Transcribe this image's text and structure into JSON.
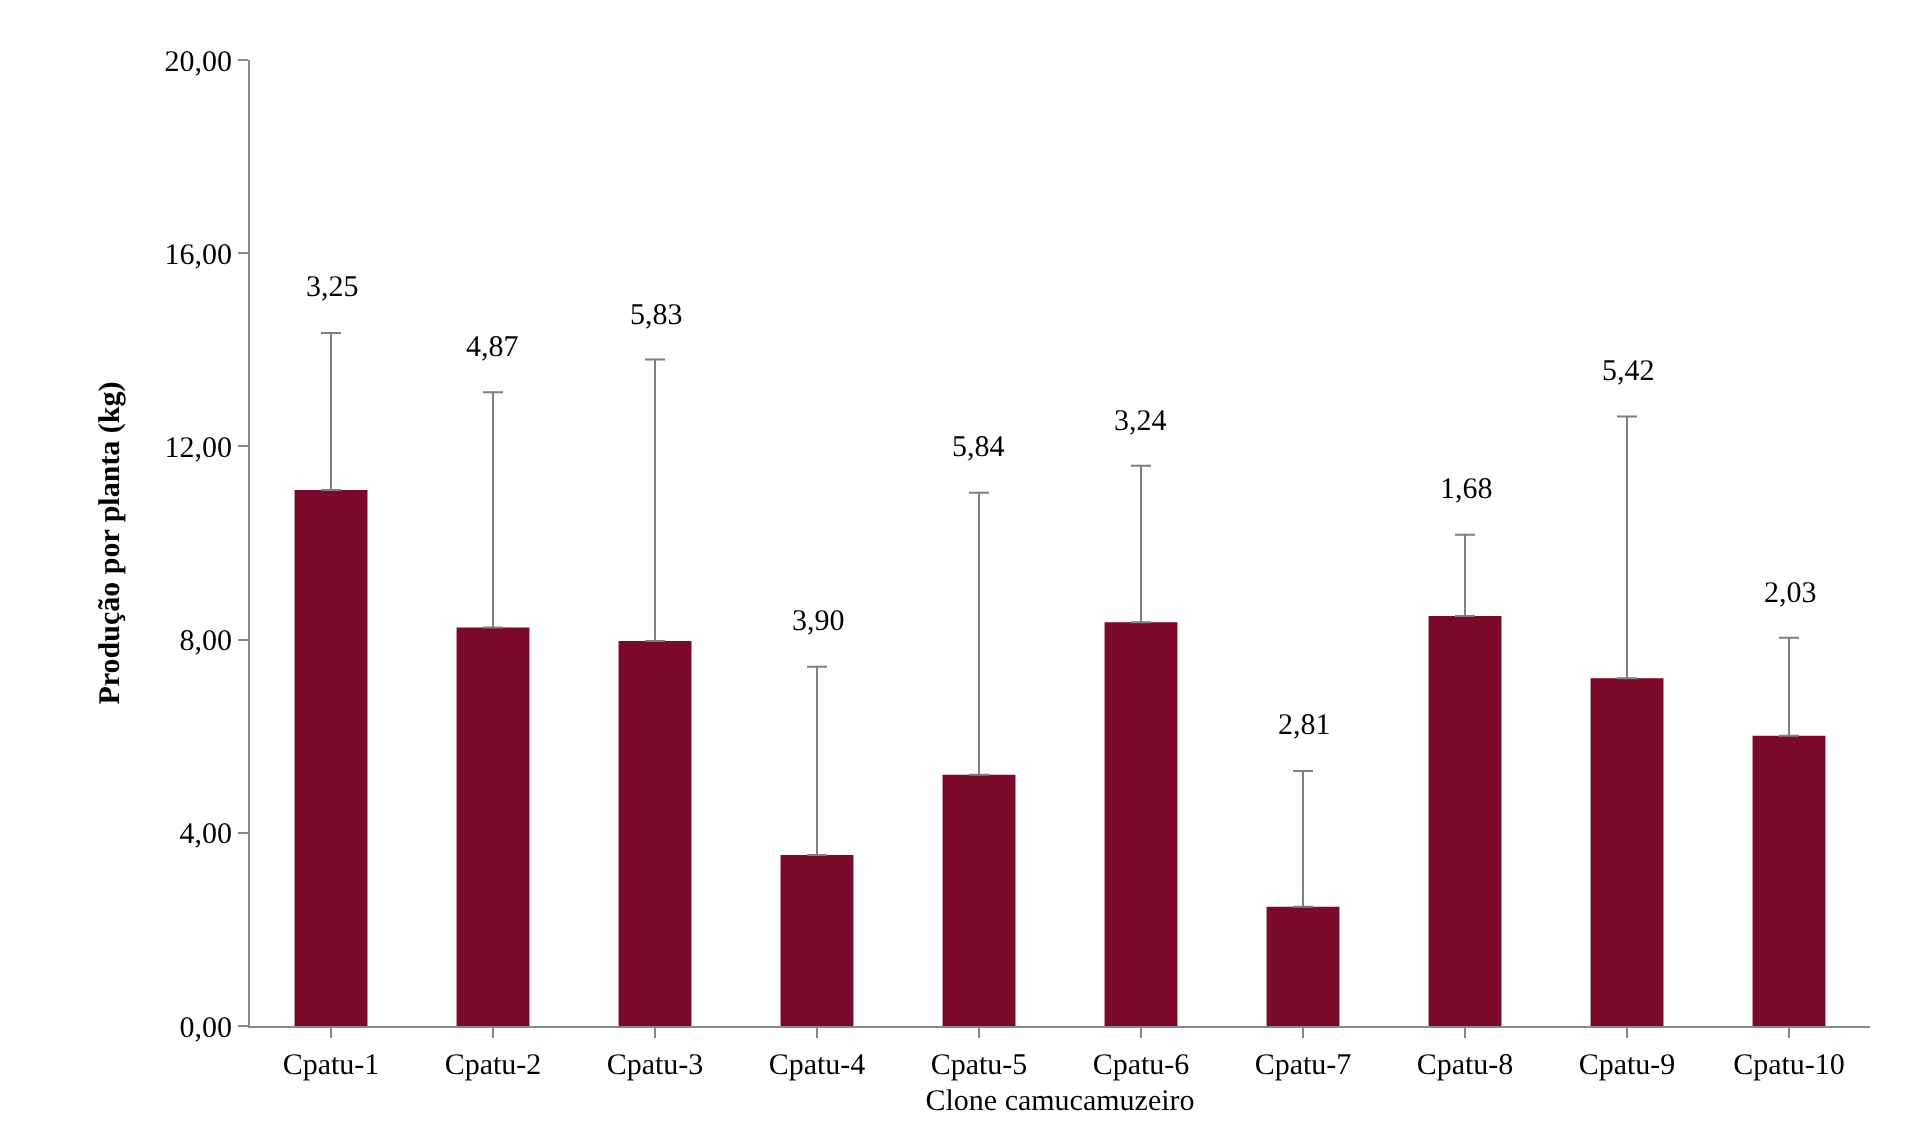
{
  "chart_data": {
    "type": "bar",
    "xlabel": "Clone camucamuzeiro",
    "ylabel": "Produção por planta (kg)",
    "categories": [
      "Cpatu-1",
      "Cpatu-2",
      "Cpatu-3",
      "Cpatu-4",
      "Cpatu-5",
      "Cpatu-6",
      "Cpatu-7",
      "Cpatu-8",
      "Cpatu-9",
      "Cpatu-10"
    ],
    "values": [
      11.1,
      8.25,
      7.97,
      3.54,
      5.2,
      8.36,
      2.47,
      8.49,
      7.2,
      6.01
    ],
    "errors": [
      [
        11.1,
        14.35
      ],
      [
        8.25,
        13.12
      ],
      [
        7.97,
        13.8
      ],
      [
        3.54,
        7.44
      ],
      [
        5.2,
        11.04
      ],
      [
        8.36,
        11.6
      ],
      [
        2.47,
        5.28
      ],
      [
        8.49,
        10.17
      ],
      [
        7.2,
        12.62
      ],
      [
        6.01,
        8.04
      ]
    ],
    "annotations": [
      {
        "text": "3,25",
        "x": "Cpatu-1",
        "y": 14.35
      },
      {
        "text": "4,87",
        "x": "Cpatu-2",
        "y": 13.12
      },
      {
        "text": "5,83",
        "x": "Cpatu-3",
        "y": 13.8
      },
      {
        "text": "3,90",
        "x": "Cpatu-4",
        "y": 7.44
      },
      {
        "text": "5,84",
        "x": "Cpatu-5",
        "y": 11.04
      },
      {
        "text": "3,24",
        "x": "Cpatu-6",
        "y": 11.6
      },
      {
        "text": "2,81",
        "x": "Cpatu-7",
        "y": 5.28
      },
      {
        "text": "1,68",
        "x": "Cpatu-8",
        "y": 10.17
      },
      {
        "text": "5,42",
        "x": "Cpatu-9",
        "y": 12.62
      },
      {
        "text": "2,03",
        "x": "Cpatu-10",
        "y": 8.04
      }
    ],
    "color": "#7b0a2a",
    "ylim": [
      0,
      20
    ],
    "yticks": [
      {
        "value": 0,
        "label": "0,00"
      },
      {
        "value": 4,
        "label": "4,00"
      },
      {
        "value": 8,
        "label": "8,00"
      },
      {
        "value": 12,
        "label": "12,00"
      },
      {
        "value": 16,
        "label": "16,00"
      },
      {
        "value": 20,
        "label": "20,00"
      }
    ],
    "grid": false,
    "legend": false
  }
}
